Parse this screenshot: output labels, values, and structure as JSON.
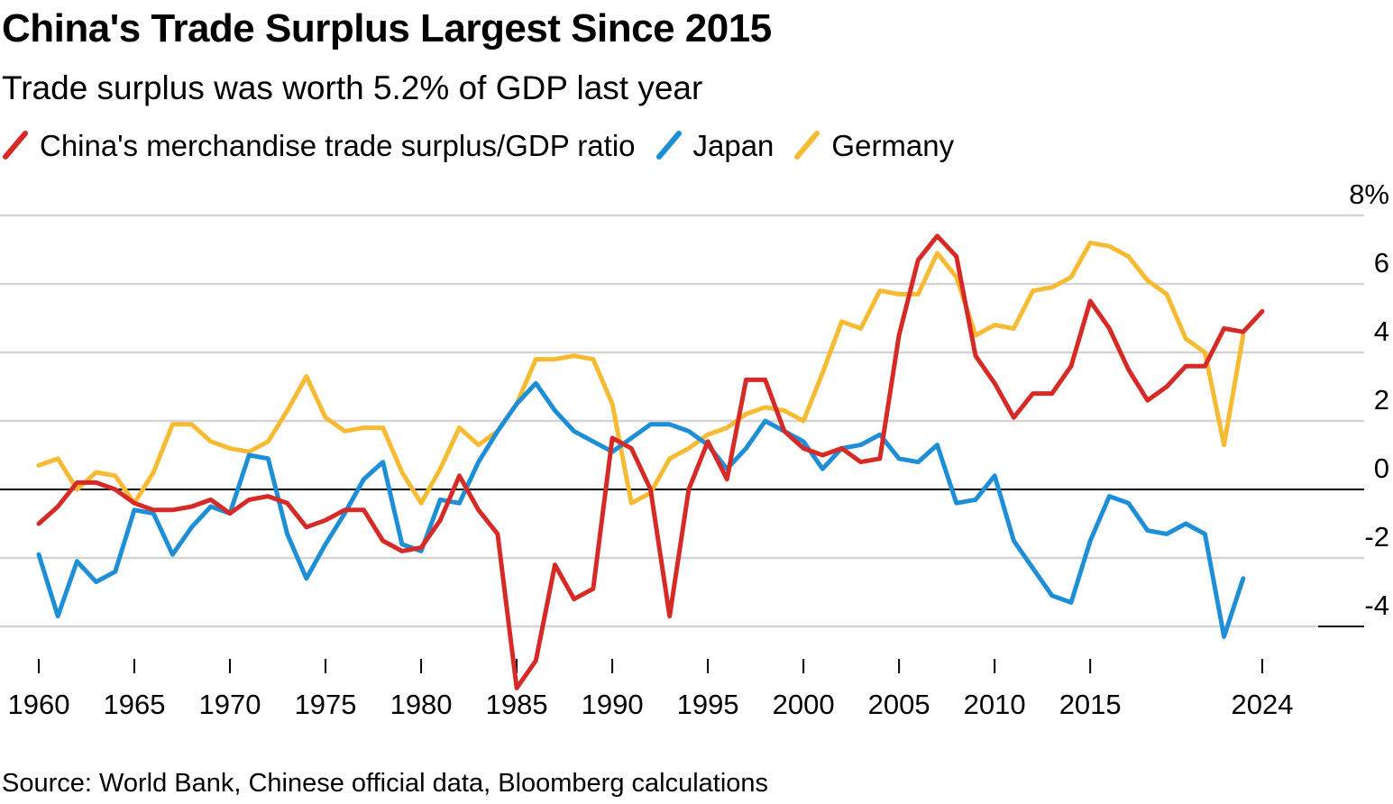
{
  "title": "China's Trade Surplus Largest Since 2015",
  "subtitle": "Trade surplus was worth 5.2% of GDP last year",
  "source": "Source: World Bank, Chinese official data, Bloomberg calculations",
  "colors": {
    "china": "#d62a27",
    "japan": "#1e8fd6",
    "germany": "#f7bb33",
    "grid": "#d4d4d4",
    "zero": "#000000"
  },
  "chart_data": {
    "type": "line",
    "ylim": [
      -4,
      8
    ],
    "xlim": [
      1960,
      2024
    ],
    "y_ticks": [
      8,
      6,
      4,
      2,
      0,
      -2,
      -4
    ],
    "y_tick_labels": [
      "8%",
      "6",
      "4",
      "2",
      "0",
      "-2",
      "-4"
    ],
    "x_ticks": [
      1960,
      1965,
      1970,
      1975,
      1980,
      1985,
      1990,
      1995,
      2000,
      2005,
      2010,
      2015,
      2024
    ],
    "x_tick_labels": [
      "1960",
      "1965",
      "1970",
      "1975",
      "1980",
      "1985",
      "1990",
      "1995",
      "2000",
      "2005",
      "2010",
      "2015",
      "2024"
    ],
    "grid": true,
    "legend_position": "top-left",
    "series": [
      {
        "name": "China's merchandise trade surplus/GDP ratio",
        "color": "#d62a27",
        "x": [
          1960,
          1961,
          1962,
          1963,
          1964,
          1965,
          1966,
          1967,
          1968,
          1969,
          1970,
          1971,
          1972,
          1973,
          1974,
          1975,
          1976,
          1977,
          1978,
          1979,
          1980,
          1981,
          1982,
          1983,
          1984,
          1985,
          1986,
          1987,
          1988,
          1989,
          1990,
          1991,
          1992,
          1993,
          1994,
          1995,
          1996,
          1997,
          1998,
          1999,
          2000,
          2001,
          2002,
          2003,
          2004,
          2005,
          2006,
          2007,
          2008,
          2009,
          2010,
          2011,
          2012,
          2013,
          2014,
          2015,
          2016,
          2017,
          2018,
          2019,
          2020,
          2021,
          2022,
          2023,
          2024
        ],
        "y": [
          -1.0,
          -0.5,
          0.2,
          0.2,
          0.0,
          -0.4,
          -0.6,
          -0.6,
          -0.5,
          -0.3,
          -0.7,
          -0.3,
          -0.2,
          -0.4,
          -1.1,
          -0.9,
          -0.6,
          -0.6,
          -1.5,
          -1.8,
          -1.7,
          -0.9,
          0.4,
          -0.6,
          -1.3,
          -5.8,
          -5.0,
          -2.2,
          -3.2,
          -2.9,
          1.5,
          1.2,
          0.0,
          -3.7,
          0.0,
          1.4,
          0.3,
          3.2,
          3.2,
          1.7,
          1.2,
          1.0,
          1.2,
          0.8,
          0.9,
          4.5,
          6.7,
          7.4,
          6.8,
          3.9,
          3.1,
          2.1,
          2.8,
          2.8,
          3.6,
          5.5,
          4.7,
          3.5,
          2.6,
          3.0,
          3.6,
          3.6,
          4.7,
          4.6,
          5.2
        ]
      },
      {
        "name": "Japan",
        "color": "#1e8fd6",
        "x": [
          1960,
          1961,
          1962,
          1963,
          1964,
          1965,
          1966,
          1967,
          1968,
          1969,
          1970,
          1971,
          1972,
          1973,
          1974,
          1975,
          1976,
          1977,
          1978,
          1979,
          1980,
          1981,
          1982,
          1983,
          1984,
          1985,
          1986,
          1987,
          1988,
          1989,
          1990,
          1991,
          1992,
          1993,
          1994,
          1995,
          1996,
          1997,
          1998,
          1999,
          2000,
          2001,
          2002,
          2003,
          2004,
          2005,
          2006,
          2007,
          2008,
          2009,
          2010,
          2011,
          2012,
          2013,
          2014,
          2015,
          2016,
          2017,
          2018,
          2019,
          2020,
          2021,
          2022,
          2023
        ],
        "y": [
          -1.9,
          -3.7,
          -2.1,
          -2.7,
          -2.4,
          -0.6,
          -0.7,
          -1.9,
          -1.1,
          -0.5,
          -0.7,
          1.0,
          0.9,
          -1.3,
          -2.6,
          -1.6,
          -0.7,
          0.3,
          0.8,
          -1.6,
          -1.8,
          -0.3,
          -0.4,
          0.8,
          1.7,
          2.5,
          3.1,
          2.3,
          1.7,
          1.4,
          1.1,
          1.5,
          1.9,
          1.9,
          1.7,
          1.3,
          0.6,
          1.2,
          2.0,
          1.7,
          1.4,
          0.6,
          1.2,
          1.3,
          1.6,
          0.9,
          0.8,
          1.3,
          -0.4,
          -0.3,
          0.4,
          -1.5,
          -2.3,
          -3.1,
          -3.3,
          -1.5,
          -0.2,
          -0.4,
          -1.2,
          -1.3,
          -1.0,
          -1.3,
          -4.3,
          -2.6
        ]
      },
      {
        "name": "Germany",
        "color": "#f7bb33",
        "x": [
          1960,
          1961,
          1962,
          1963,
          1964,
          1965,
          1966,
          1967,
          1968,
          1969,
          1970,
          1971,
          1972,
          1973,
          1974,
          1975,
          1976,
          1977,
          1978,
          1979,
          1980,
          1981,
          1982,
          1983,
          1984,
          1985,
          1986,
          1987,
          1988,
          1989,
          1990,
          1991,
          1992,
          1993,
          1994,
          1995,
          1996,
          1997,
          1998,
          1999,
          2000,
          2001,
          2002,
          2003,
          2004,
          2005,
          2006,
          2007,
          2008,
          2009,
          2010,
          2011,
          2012,
          2013,
          2014,
          2015,
          2016,
          2017,
          2018,
          2019,
          2020,
          2021,
          2022,
          2023
        ],
        "y": [
          0.7,
          0.9,
          0.0,
          0.5,
          0.4,
          -0.4,
          0.5,
          1.9,
          1.9,
          1.4,
          1.2,
          1.1,
          1.4,
          2.3,
          3.3,
          2.1,
          1.7,
          1.8,
          1.8,
          0.5,
          -0.4,
          0.6,
          1.8,
          1.3,
          1.7,
          2.5,
          3.8,
          3.8,
          3.9,
          3.8,
          2.5,
          -0.4,
          -0.1,
          0.9,
          1.2,
          1.6,
          1.8,
          2.2,
          2.4,
          2.3,
          2.0,
          3.4,
          4.9,
          4.7,
          5.8,
          5.7,
          5.7,
          6.9,
          6.2,
          4.5,
          4.8,
          4.7,
          5.8,
          5.9,
          6.2,
          7.2,
          7.1,
          6.8,
          6.1,
          5.7,
          4.4,
          4.0,
          1.3,
          4.5
        ]
      }
    ]
  }
}
